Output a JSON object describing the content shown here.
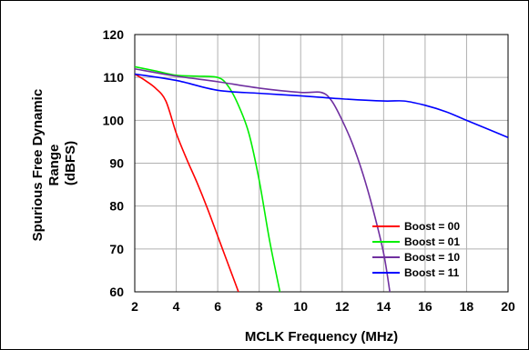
{
  "chart_data": {
    "type": "line",
    "xlabel": "MCLK Frequency (MHz)",
    "ylabel_lines": [
      "Spurious Free Dynamic",
      "Range",
      "(dBFS)"
    ],
    "xlim": [
      2,
      20
    ],
    "ylim": [
      60,
      120
    ],
    "xticks": [
      2,
      4,
      6,
      8,
      10,
      12,
      14,
      16,
      18,
      20
    ],
    "yticks": [
      60,
      70,
      80,
      90,
      100,
      110,
      120
    ],
    "xtick_labels": [
      "2",
      "4",
      "6",
      "8",
      "10",
      "12",
      "14",
      "16",
      "18",
      "20"
    ],
    "ytick_labels": [
      "60",
      "70",
      "80",
      "90",
      "100",
      "110",
      "120"
    ],
    "grid": true,
    "legend_position": "bottom-right",
    "series": [
      {
        "name": "Boost = 00",
        "color": "#ff0000",
        "x": [
          2.0,
          2.5,
          3.0,
          3.5,
          4.0,
          4.5,
          5.0,
          5.5,
          6.0,
          6.5,
          7.0
        ],
        "y": [
          110.8,
          109.3,
          107.5,
          104.5,
          97.0,
          91.0,
          85.5,
          79.5,
          73.0,
          66.5,
          60.0
        ]
      },
      {
        "name": "Boost = 01",
        "color": "#00ee00",
        "x": [
          2.0,
          3.0,
          4.0,
          5.0,
          6.0,
          6.5,
          7.0,
          7.5,
          8.0,
          8.5,
          9.0
        ],
        "y": [
          112.5,
          111.5,
          110.5,
          110.3,
          110.0,
          108.0,
          103.5,
          97.0,
          86.0,
          72.0,
          60.0
        ]
      },
      {
        "name": "Boost = 10",
        "color": "#7030a0",
        "x": [
          2.0,
          4.0,
          6.0,
          8.0,
          10.0,
          11.0,
          11.5,
          12.0,
          12.5,
          13.0,
          13.5,
          14.0,
          14.3
        ],
        "y": [
          112.0,
          110.3,
          109.0,
          107.5,
          106.5,
          106.5,
          104.5,
          100.0,
          94.5,
          87.5,
          79.0,
          69.0,
          60.0
        ]
      },
      {
        "name": "Boost = 11",
        "color": "#0000ff",
        "x": [
          2.0,
          4.0,
          6.0,
          8.0,
          10.0,
          12.0,
          14.0,
          15.0,
          16.0,
          17.0,
          18.0,
          19.0,
          20.0
        ],
        "y": [
          110.8,
          109.3,
          107.0,
          106.3,
          105.7,
          105.0,
          104.5,
          104.5,
          103.5,
          102.0,
          100.0,
          98.0,
          96.0
        ]
      }
    ]
  }
}
